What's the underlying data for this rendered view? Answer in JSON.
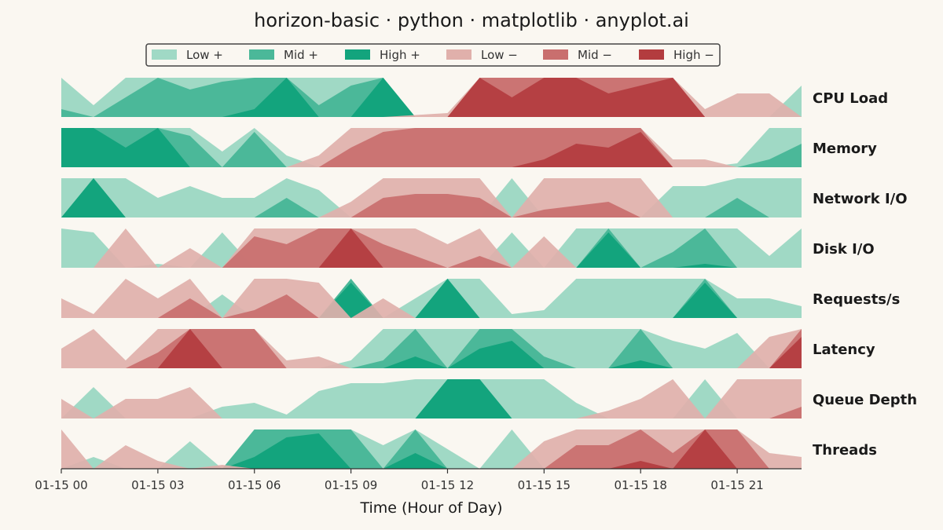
{
  "chart_data": {
    "type": "area",
    "subtype": "horizon",
    "title": "horizon-basic · python · matplotlib · anyplot.ai",
    "xlabel": "Time (Hour of Day)",
    "ylabel": "",
    "x_ticks": [
      "01-15 00",
      "01-15 03",
      "01-15 06",
      "01-15 09",
      "01-15 12",
      "01-15 15",
      "01-15 18",
      "01-15 21"
    ],
    "x_tick_hours": [
      0,
      3,
      6,
      9,
      12,
      15,
      18,
      21
    ],
    "x_range_hours": [
      0,
      23
    ],
    "bands": 3,
    "legend_position": "top-center",
    "legend": [
      {
        "label": "Low +",
        "color": "#a0d9c5"
      },
      {
        "label": "Mid +",
        "color": "#4bb899"
      },
      {
        "label": "High +",
        "color": "#13a47d"
      },
      {
        "label": "Low −",
        "color": "#e0b0ab"
      },
      {
        "label": "Mid −",
        "color": "#c96f6e"
      },
      {
        "label": "High −",
        "color": "#b33c3f"
      }
    ],
    "series": [
      {
        "name": "CPU Load",
        "values": [
          1.2,
          0.3,
          1.5,
          2.0,
          1.7,
          1.9,
          2.2,
          3.0,
          1.3,
          1.8,
          3.0,
          -0.05,
          -0.1,
          -3.0,
          -2.5,
          -3.0,
          -3.0,
          -2.6,
          -2.8,
          -3.0,
          -0.2,
          -0.6,
          -0.6,
          0.8
        ]
      },
      {
        "name": "Memory",
        "values": [
          3.0,
          3.0,
          2.5,
          3.0,
          1.8,
          0.4,
          1.9,
          0.3,
          -0.3,
          -1.5,
          -1.9,
          -2.0,
          -2.0,
          -2.0,
          -2.0,
          -2.2,
          -2.6,
          -2.5,
          -2.9,
          -0.2,
          -0.2,
          0.1,
          1.2,
          1.6
        ]
      },
      {
        "name": "Network I/O",
        "values": [
          1.0,
          3.0,
          1.0,
          0.5,
          0.8,
          0.5,
          0.5,
          1.5,
          0.7,
          -0.4,
          -1.5,
          -1.6,
          -1.6,
          -1.5,
          1.0,
          -1.2,
          -1.3,
          -1.4,
          -1.0,
          0.8,
          0.8,
          1.5,
          1.0,
          1.0
        ]
      },
      {
        "name": "Disk I/O",
        "values": [
          1.0,
          0.9,
          -1.0,
          0.1,
          -0.5,
          0.9,
          -1.8,
          -1.6,
          -2.0,
          -3.0,
          -1.6,
          -1.3,
          -0.6,
          -1.3,
          0.9,
          -0.8,
          1.0,
          2.9,
          1.0,
          1.4,
          2.1,
          1.0,
          0.3,
          1.0
        ]
      },
      {
        "name": "Requests/s",
        "values": [
          -0.5,
          -0.1,
          -1.0,
          -0.5,
          -1.5,
          0.6,
          -1.2,
          -1.6,
          -0.9,
          2.9,
          -0.5,
          0.5,
          3.0,
          1.0,
          0.1,
          0.2,
          1.0,
          1.0,
          1.0,
          1.0,
          2.9,
          0.5,
          0.5,
          0.3
        ]
      },
      {
        "name": "Latency",
        "values": [
          -0.5,
          -1.0,
          -0.2,
          -1.4,
          -3.0,
          -2.0,
          -2.0,
          -0.2,
          -0.3,
          0.2,
          1.2,
          2.3,
          1.0,
          2.5,
          2.7,
          1.3,
          1.0,
          1.0,
          2.2,
          0.7,
          0.5,
          0.9,
          -0.8,
          -2.8
        ]
      },
      {
        "name": "Queue Depth",
        "values": [
          -0.5,
          0.8,
          -0.5,
          -0.5,
          -0.8,
          0.3,
          0.4,
          0.1,
          0.7,
          0.9,
          0.9,
          1.0,
          3.0,
          3.0,
          1.0,
          1.0,
          0.4,
          -0.2,
          -0.5,
          -1.0,
          1.0,
          -1.0,
          -1.0,
          -1.3
        ]
      },
      {
        "name": "Threads",
        "values": [
          -1.0,
          0.3,
          -0.6,
          -0.2,
          0.7,
          -0.1,
          2.3,
          2.8,
          2.9,
          2.0,
          0.6,
          2.4,
          0.5,
          0.0,
          1.0,
          -0.7,
          -1.6,
          -1.6,
          -2.2,
          -1.4,
          -3.0,
          -2.0,
          -0.4,
          -0.3
        ]
      }
    ]
  }
}
